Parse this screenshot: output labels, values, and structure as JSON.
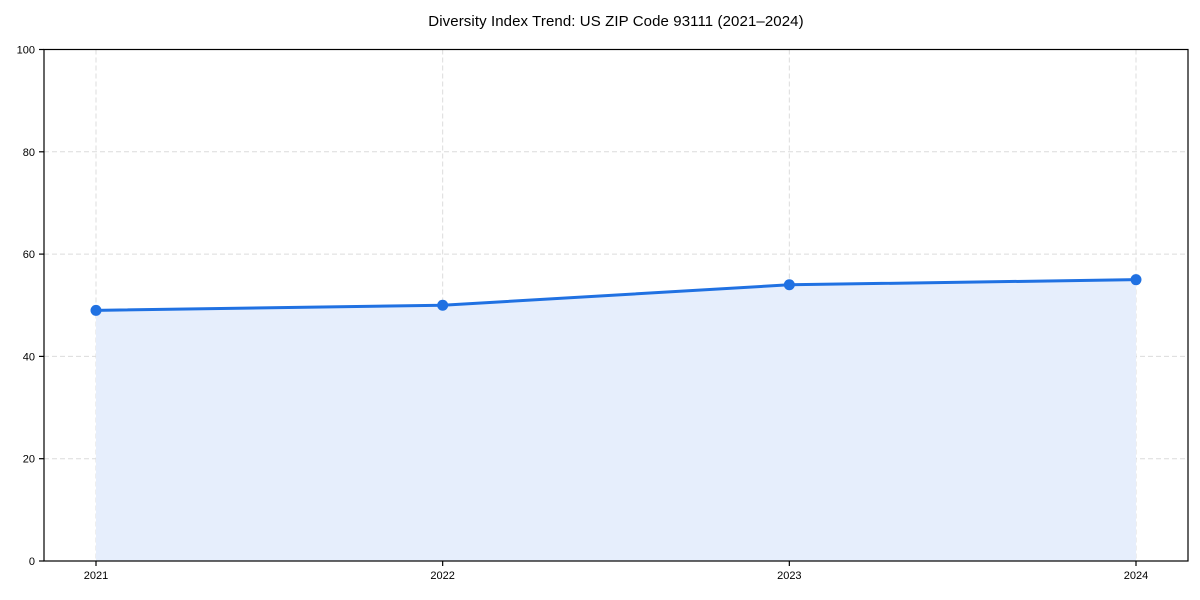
{
  "chart_data": {
    "type": "line",
    "title": "Diversity Index Trend: US ZIP Code 93111 (2021–2024)",
    "xlabel": "",
    "ylabel": "",
    "x": [
      2021,
      2022,
      2023,
      2024
    ],
    "x_tick_labels": [
      "2021",
      "2022",
      "2023",
      "2024"
    ],
    "series": [
      {
        "name": "Diversity Index",
        "values": [
          49,
          50,
          54,
          55
        ]
      }
    ],
    "xlim": [
      2020.85,
      2024.15
    ],
    "ylim": [
      0,
      100
    ],
    "y_ticks": [
      0,
      20,
      40,
      60,
      80,
      100
    ],
    "grid": "dashed-both-axes",
    "legend": "none",
    "area_fill": true,
    "colors": {
      "line": "#2071e2",
      "marker": "#2071e2",
      "area": "#e6eefc",
      "grid": "#dcdcdc",
      "axis": "#000000",
      "text": "#000000"
    }
  }
}
